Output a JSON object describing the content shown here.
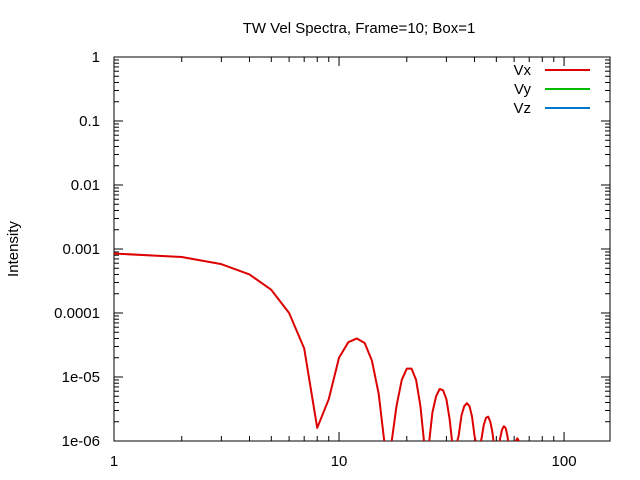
{
  "chart_data": {
    "type": "line",
    "title": "TW Vel Spectra, Frame=10; Box=1",
    "xlabel": "",
    "ylabel": "Intensity",
    "x_scale": "log",
    "y_scale": "log",
    "xlim": [
      1,
      160
    ],
    "ylim": [
      1e-06,
      1
    ],
    "x_ticks": [
      {
        "value": 1,
        "label": "1"
      },
      {
        "value": 10,
        "label": "10"
      },
      {
        "value": 100,
        "label": "100"
      }
    ],
    "y_ticks": [
      {
        "value": 1e-06,
        "label": "1e-06"
      },
      {
        "value": 1e-05,
        "label": "1e-05"
      },
      {
        "value": 0.0001,
        "label": "0.0001"
      },
      {
        "value": 0.001,
        "label": "0.001"
      },
      {
        "value": 0.01,
        "label": "0.01"
      },
      {
        "value": 0.1,
        "label": "0.1"
      },
      {
        "value": 1,
        "label": "1"
      }
    ],
    "grid": false,
    "legend_position": "top-right",
    "series": [
      {
        "name": "Vx",
        "color": "#dd0000",
        "x": [
          1,
          2,
          3,
          4,
          5,
          6,
          7,
          8,
          9,
          10,
          11,
          12,
          13,
          14,
          15,
          16,
          17,
          18,
          19,
          20,
          21,
          22,
          23,
          24,
          25,
          26,
          27,
          28,
          29,
          30,
          31,
          32,
          33,
          34,
          35,
          36,
          37,
          38,
          39,
          40,
          41,
          42,
          43,
          44,
          45,
          46,
          47,
          48,
          49,
          50,
          51,
          52,
          53,
          54,
          55,
          56,
          57,
          58,
          59,
          60,
          61,
          62,
          63,
          64
        ],
        "y": [
          0.00085,
          0.00075,
          0.00058,
          0.0004,
          0.00023,
          0.0001,
          2.8e-05,
          1.6e-06,
          4.5e-06,
          2e-05,
          3.5e-05,
          4e-05,
          3.4e-05,
          1.8e-05,
          5.5e-06,
          8e-07,
          8e-07,
          3.5e-06,
          9e-06,
          1.35e-05,
          1.35e-05,
          9e-06,
          3.5e-06,
          8e-07,
          8e-07,
          2.8e-06,
          5e-06,
          6.5e-06,
          6.2e-06,
          4.5e-06,
          2.2e-06,
          8e-07,
          8e-07,
          1.2e-06,
          2.5e-06,
          3.5e-06,
          3.9e-06,
          3.5e-06,
          2.4e-06,
          1.2e-06,
          8e-07,
          8e-07,
          1.1e-06,
          1.8e-06,
          2.3e-06,
          2.4e-06,
          2e-06,
          1.4e-06,
          8e-07,
          8e-07,
          8e-07,
          1.1e-06,
          1.5e-06,
          1.7e-06,
          1.6e-06,
          1.2e-06,
          8e-07,
          8e-07,
          8e-07,
          8e-07,
          1e-06,
          1.1e-06,
          1e-06,
          8e-07
        ]
      },
      {
        "name": "Vy",
        "color": "#00bb00",
        "x": [],
        "y": []
      },
      {
        "name": "Vz",
        "color": "#0077cc",
        "x": [],
        "y": []
      }
    ]
  }
}
